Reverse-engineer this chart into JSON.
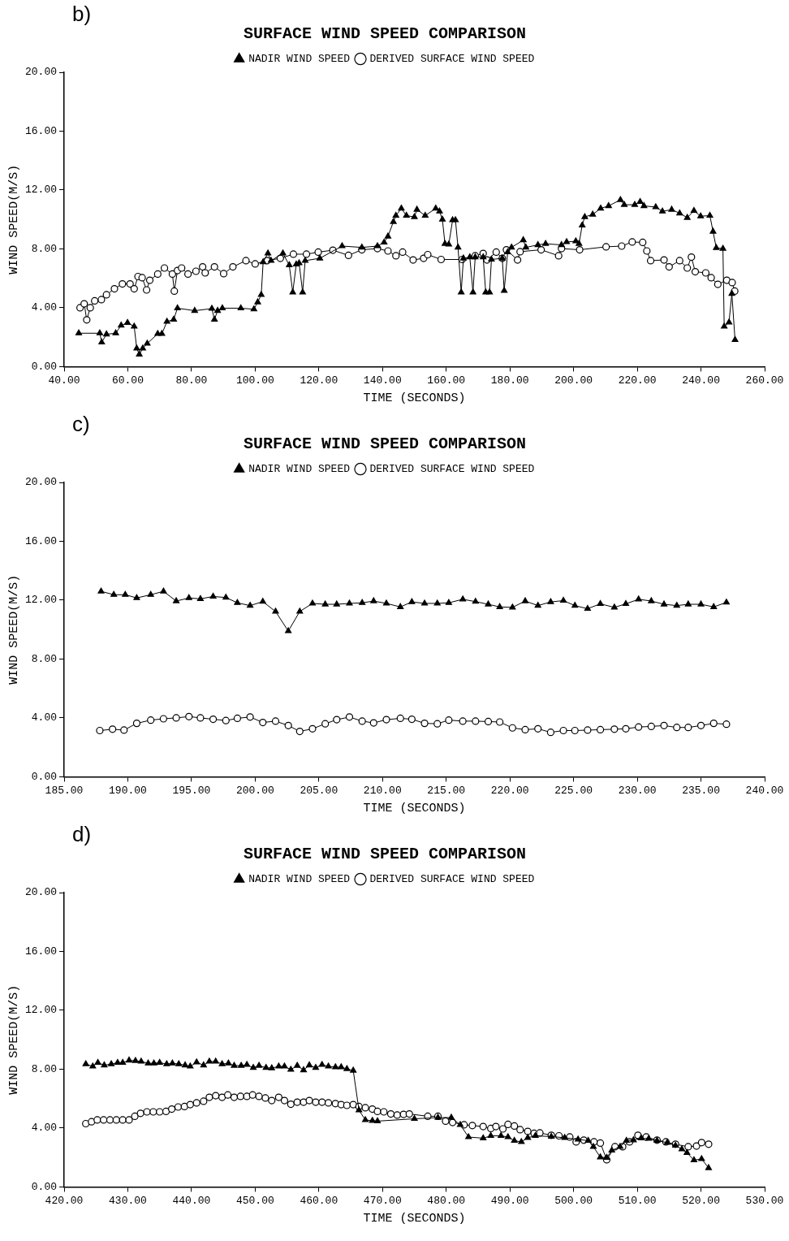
{
  "chart_data": [
    {
      "type": "line",
      "title": "SURFACE WIND SPEED COMPARISON",
      "annotations": [
        "b)"
      ],
      "xlabel": "TIME (SECONDS)",
      "ylabel": "WIND SPEED(M/S)",
      "legend": "top",
      "xlim": [
        40,
        260
      ],
      "xticks": [
        {
          "value": 40,
          "label": "40.00"
        },
        {
          "value": 60,
          "label": "60.00"
        },
        {
          "value": 80,
          "label": "80.00"
        },
        {
          "value": 100,
          "label": "100.00"
        },
        {
          "value": 120,
          "label": "120.00"
        },
        {
          "value": 140,
          "label": "140.00"
        },
        {
          "value": 160,
          "label": "160.00"
        },
        {
          "value": 180,
          "label": "180.00"
        },
        {
          "value": 200,
          "label": "200.00"
        },
        {
          "value": 220,
          "label": "220.00"
        },
        {
          "value": 240,
          "label": "240.00"
        },
        {
          "value": 260,
          "label": "260.00"
        }
      ],
      "ylim": [
        0,
        20
      ],
      "yticks": [
        {
          "value": 0,
          "label": "0.00"
        },
        {
          "value": 4,
          "label": "4.00"
        },
        {
          "value": 8,
          "label": "8.00"
        },
        {
          "value": 12,
          "label": "12.00"
        },
        {
          "value": 16,
          "label": "16.00"
        },
        {
          "value": 20,
          "label": "20.00"
        }
      ],
      "series": [
        {
          "name": "NADIR WIND SPEED",
          "color": "#000000",
          "marker": "triangle",
          "x": [
            44.6,
            51.2,
            51.8,
            53.3,
            56.2,
            57.9,
            59.9,
            62.0,
            62.8,
            63.6,
            64.7,
            66.1,
            69.4,
            70.7,
            72.3,
            74.4,
            75.6,
            81.0,
            86.4,
            87.2,
            88.2,
            89.7,
            95.5,
            99.6,
            100.8,
            101.9,
            102.5,
            104.0,
            105.0,
            108.7,
            110.7,
            111.8,
            112.9,
            113.8,
            114.9,
            115.7,
            120.3,
            127.3,
            133.5,
            138.4,
            140.5,
            141.7,
            143.4,
            144.2,
            145.9,
            147.5,
            150.0,
            150.8,
            153.4,
            156.7,
            157.9,
            158.8,
            159.6,
            160.8,
            162.0,
            162.9,
            163.7,
            164.7,
            165.4,
            167.4,
            168.4,
            169.1,
            171.6,
            172.4,
            173.6,
            174.2,
            177.6,
            178.2,
            179.3,
            180.5,
            184.2,
            185.0,
            188.8,
            191.2,
            196.2,
            197.8,
            200.7,
            201.7,
            202.7,
            203.5,
            206.0,
            208.5,
            211.0,
            214.7,
            215.9,
            219.2,
            220.9,
            222.1,
            225.8,
            227.9,
            230.8,
            233.3,
            235.7,
            237.8,
            239.9,
            242.8,
            243.8,
            244.8,
            246.9,
            247.3,
            248.8,
            249.7,
            250.7
          ],
          "values": [
            2.27,
            2.27,
            1.65,
            2.2,
            2.27,
            2.8,
            2.98,
            2.73,
            1.24,
            0.83,
            1.24,
            1.57,
            2.23,
            2.23,
            3.06,
            3.2,
            3.97,
            3.8,
            3.94,
            3.2,
            3.8,
            3.97,
            3.97,
            3.9,
            4.38,
            4.88,
            7.1,
            7.7,
            7.2,
            7.7,
            6.9,
            5.05,
            6.95,
            7.03,
            5.05,
            7.2,
            7.36,
            8.19,
            8.1,
            8.19,
            8.44,
            8.85,
            9.84,
            10.26,
            10.75,
            10.26,
            10.17,
            10.67,
            10.26,
            10.75,
            10.55,
            10.0,
            8.35,
            8.3,
            9.96,
            9.96,
            8.1,
            5.05,
            7.36,
            7.44,
            5.05,
            7.44,
            7.44,
            5.05,
            5.05,
            7.28,
            7.36,
            5.16,
            7.78,
            8.1,
            8.6,
            8.1,
            8.27,
            8.35,
            8.27,
            8.47,
            8.52,
            8.35,
            9.6,
            10.17,
            10.34,
            10.75,
            10.92,
            11.33,
            11.0,
            11.0,
            11.2,
            10.92,
            10.84,
            10.55,
            10.67,
            10.42,
            10.12,
            10.59,
            10.22,
            10.26,
            9.18,
            8.07,
            8.02,
            2.73,
            3.01,
            4.96,
            1.82
          ]
        },
        {
          "name": "DERIVED SURFACE WIND SPEED",
          "color": "#000000",
          "marker": "circle",
          "x": [
            45.0,
            46.3,
            47.1,
            48.2,
            49.6,
            51.7,
            53.3,
            55.8,
            58.3,
            60.7,
            62.0,
            63.2,
            64.5,
            65.9,
            66.9,
            69.4,
            71.5,
            74.0,
            74.6,
            75.6,
            76.9,
            78.9,
            81.4,
            83.5,
            84.3,
            87.2,
            90.1,
            93.0,
            97.1,
            100.0,
            103.7,
            107.9,
            112.0,
            116.1,
            119.8,
            124.4,
            129.3,
            133.5,
            138.4,
            141.7,
            144.2,
            146.3,
            149.6,
            152.9,
            154.2,
            158.4,
            165.0,
            169.1,
            171.6,
            172.8,
            175.7,
            177.6,
            178.9,
            182.4,
            183.2,
            189.8,
            195.3,
            196.2,
            201.9,
            210.2,
            215.1,
            218.4,
            221.7,
            223.0,
            224.2,
            228.4,
            230.0,
            233.3,
            235.7,
            237.0,
            238.2,
            241.5,
            243.2,
            245.3,
            248.1,
            249.8,
            250.6
          ],
          "values": [
            4.0,
            4.27,
            3.18,
            4.0,
            4.47,
            4.55,
            4.88,
            5.29,
            5.62,
            5.62,
            5.29,
            6.12,
            6.04,
            5.21,
            5.87,
            6.29,
            6.7,
            6.29,
            5.13,
            6.53,
            6.7,
            6.29,
            6.48,
            6.78,
            6.37,
            6.78,
            6.32,
            6.78,
            7.2,
            6.98,
            7.2,
            7.36,
            7.64,
            7.64,
            7.78,
            7.91,
            7.56,
            7.94,
            8.02,
            7.86,
            7.53,
            7.78,
            7.25,
            7.36,
            7.61,
            7.28,
            7.28,
            7.53,
            7.69,
            7.25,
            7.78,
            7.36,
            7.94,
            7.25,
            7.81,
            7.94,
            7.53,
            8.02,
            7.94,
            8.14,
            8.19,
            8.47,
            8.44,
            7.86,
            7.2,
            7.25,
            6.78,
            7.2,
            6.7,
            7.44,
            6.45,
            6.37,
            6.04,
            5.59,
            5.87,
            5.71,
            5.13
          ]
        }
      ]
    },
    {
      "type": "line",
      "title": "SURFACE WIND SPEED COMPARISON",
      "annotations": [
        "c)"
      ],
      "xlabel": "TIME (SECONDS)",
      "ylabel": "WIND SPEED(M/S)",
      "legend": "top",
      "xlim": [
        185,
        240
      ],
      "xticks": [
        {
          "value": 185,
          "label": "185.00"
        },
        {
          "value": 190,
          "label": "190.00"
        },
        {
          "value": 195,
          "label": "195.00"
        },
        {
          "value": 200,
          "label": "200.00"
        },
        {
          "value": 205,
          "label": "205.00"
        },
        {
          "value": 210,
          "label": "210.00"
        },
        {
          "value": 215,
          "label": "215.00"
        },
        {
          "value": 220,
          "label": "220.00"
        },
        {
          "value": 225,
          "label": "225.00"
        },
        {
          "value": 230,
          "label": "230.00"
        },
        {
          "value": 235,
          "label": "235.00"
        },
        {
          "value": 240,
          "label": "240.00"
        }
      ],
      "ylim": [
        0,
        20
      ],
      "yticks": [
        {
          "value": 0,
          "label": "0.00"
        },
        {
          "value": 4,
          "label": "4.00"
        },
        {
          "value": 8,
          "label": "8.00"
        },
        {
          "value": 12,
          "label": "12.00"
        },
        {
          "value": 16,
          "label": "16.00"
        },
        {
          "value": 20,
          "label": "20.00"
        }
      ],
      "series": [
        {
          "name": "NADIR WIND SPEED",
          "color": "#000000",
          "marker": "triangle",
          "x": [
            187.9,
            188.9,
            189.8,
            190.7,
            191.8,
            192.8,
            193.8,
            194.8,
            195.7,
            196.7,
            197.7,
            198.6,
            199.6,
            200.6,
            201.6,
            202.6,
            203.5,
            204.5,
            205.5,
            206.4,
            207.4,
            208.4,
            209.3,
            210.3,
            211.4,
            212.3,
            213.3,
            214.3,
            215.2,
            216.3,
            217.3,
            218.3,
            219.2,
            220.2,
            221.2,
            222.2,
            223.2,
            224.2,
            225.1,
            226.1,
            227.1,
            228.2,
            229.1,
            230.1,
            231.1,
            232.1,
            233.1,
            234.0,
            235.0,
            236.0,
            237.0
          ],
          "values": [
            12.6,
            12.37,
            12.37,
            12.15,
            12.37,
            12.6,
            11.94,
            12.15,
            12.09,
            12.25,
            12.18,
            11.82,
            11.63,
            11.9,
            11.23,
            9.9,
            11.23,
            11.78,
            11.72,
            11.72,
            11.78,
            11.82,
            11.94,
            11.78,
            11.54,
            11.88,
            11.78,
            11.78,
            11.82,
            12.06,
            11.9,
            11.72,
            11.54,
            11.51,
            11.94,
            11.63,
            11.88,
            11.97,
            11.63,
            11.42,
            11.75,
            11.51,
            11.75,
            12.06,
            11.94,
            11.72,
            11.63,
            11.72,
            11.72,
            11.54,
            11.85
          ]
        },
        {
          "name": "DERIVED SURFACE WIND SPEED",
          "color": "#000000",
          "marker": "circle",
          "x": [
            187.8,
            188.8,
            189.7,
            190.7,
            191.8,
            192.8,
            193.8,
            194.8,
            195.7,
            196.7,
            197.7,
            198.6,
            199.6,
            200.6,
            201.6,
            202.6,
            203.5,
            204.5,
            205.5,
            206.4,
            207.4,
            208.4,
            209.3,
            210.3,
            211.4,
            212.3,
            213.3,
            214.3,
            215.2,
            216.3,
            217.3,
            218.3,
            219.2,
            220.2,
            221.2,
            222.2,
            223.2,
            224.2,
            225.1,
            226.1,
            227.1,
            228.2,
            229.1,
            230.1,
            231.1,
            232.1,
            233.1,
            234.0,
            235.0,
            236.0,
            237.0
          ],
          "values": [
            3.14,
            3.23,
            3.17,
            3.63,
            3.85,
            3.94,
            4.0,
            4.09,
            4.0,
            3.91,
            3.82,
            3.97,
            4.06,
            3.69,
            3.78,
            3.48,
            3.08,
            3.26,
            3.6,
            3.88,
            4.06,
            3.78,
            3.66,
            3.88,
            3.97,
            3.91,
            3.63,
            3.6,
            3.85,
            3.78,
            3.78,
            3.75,
            3.72,
            3.32,
            3.2,
            3.26,
            3.02,
            3.14,
            3.14,
            3.17,
            3.2,
            3.23,
            3.26,
            3.38,
            3.42,
            3.48,
            3.35,
            3.35,
            3.48,
            3.63,
            3.57
          ]
        }
      ]
    },
    {
      "type": "line",
      "title": "SURFACE WIND SPEED COMPARISON",
      "annotations": [
        "d)"
      ],
      "xlabel": "TIME (SECONDS)",
      "ylabel": "WIND SPEED(M/S)",
      "legend": "top",
      "xlim": [
        420,
        530
      ],
      "xticks": [
        {
          "value": 420,
          "label": "420.00"
        },
        {
          "value": 430,
          "label": "430.00"
        },
        {
          "value": 440,
          "label": "440.00"
        },
        {
          "value": 450,
          "label": "450.00"
        },
        {
          "value": 460,
          "label": "460.00"
        },
        {
          "value": 470,
          "label": "470.00"
        },
        {
          "value": 480,
          "label": "480.00"
        },
        {
          "value": 490,
          "label": "490.00"
        },
        {
          "value": 500,
          "label": "500.00"
        },
        {
          "value": 510,
          "label": "510.00"
        },
        {
          "value": 520,
          "label": "520.00"
        },
        {
          "value": 530,
          "label": "530.00"
        }
      ],
      "ylim": [
        0,
        20
      ],
      "yticks": [
        {
          "value": 0,
          "label": "0.00"
        },
        {
          "value": 4,
          "label": "4.00"
        },
        {
          "value": 8,
          "label": "8.00"
        },
        {
          "value": 12,
          "label": "12.00"
        },
        {
          "value": 16,
          "label": "16.00"
        },
        {
          "value": 20,
          "label": "20.00"
        }
      ],
      "series": [
        {
          "name": "NADIR WIND SPEED",
          "color": "#000000",
          "marker": "triangle",
          "x": [
            423.4,
            424.5,
            425.3,
            426.3,
            427.4,
            428.4,
            429.2,
            430.2,
            431.2,
            432.1,
            433.2,
            434.1,
            435.0,
            436.1,
            437.0,
            438.0,
            439.0,
            439.8,
            440.8,
            441.9,
            442.8,
            443.8,
            444.8,
            445.8,
            446.7,
            447.8,
            448.7,
            449.7,
            450.6,
            451.7,
            452.6,
            453.7,
            454.6,
            455.6,
            456.6,
            457.6,
            458.5,
            459.5,
            460.5,
            461.5,
            462.6,
            463.5,
            464.4,
            465.4,
            466.3,
            467.3,
            468.4,
            469.2,
            475.0,
            478.7,
            480.8,
            482.2,
            483.5,
            485.8,
            487.0,
            488.6,
            489.7,
            490.7,
            491.8,
            492.8,
            494.0,
            496.5,
            498.6,
            500.7,
            502.3,
            503.1,
            504.2,
            505.2,
            506.0,
            507.3,
            508.3,
            509.4,
            510.6,
            511.8,
            513.1,
            514.7,
            516.0,
            517.0,
            517.8,
            518.9,
            520.1,
            521.2
          ],
          "values": [
            8.35,
            8.19,
            8.44,
            8.27,
            8.35,
            8.44,
            8.44,
            8.6,
            8.57,
            8.52,
            8.4,
            8.4,
            8.44,
            8.35,
            8.4,
            8.35,
            8.27,
            8.19,
            8.47,
            8.27,
            8.52,
            8.52,
            8.35,
            8.4,
            8.24,
            8.24,
            8.3,
            8.1,
            8.24,
            8.1,
            8.07,
            8.19,
            8.19,
            7.97,
            8.24,
            7.94,
            8.27,
            8.1,
            8.3,
            8.19,
            8.14,
            8.14,
            8.02,
            7.91,
            5.21,
            4.55,
            4.5,
            4.47,
            4.63,
            4.71,
            4.71,
            4.22,
            3.39,
            3.31,
            3.47,
            3.47,
            3.39,
            3.14,
            3.06,
            3.34,
            3.47,
            3.42,
            3.34,
            3.23,
            3.14,
            2.73,
            2.02,
            1.99,
            2.48,
            2.73,
            3.14,
            3.18,
            3.31,
            3.28,
            3.14,
            3.01,
            2.81,
            2.56,
            2.32,
            1.82,
            1.9,
            1.29
          ]
        },
        {
          "name": "DERIVED SURFACE WIND SPEED",
          "color": "#000000",
          "marker": "circle",
          "x": [
            423.4,
            424.3,
            425.2,
            426.2,
            427.2,
            428.2,
            429.2,
            430.2,
            431.1,
            432.0,
            433.0,
            434.0,
            435.0,
            436.0,
            436.9,
            437.9,
            438.9,
            439.8,
            440.8,
            441.9,
            442.8,
            443.8,
            444.8,
            445.7,
            446.7,
            447.7,
            448.7,
            449.6,
            450.6,
            451.6,
            452.6,
            453.7,
            454.6,
            455.6,
            456.6,
            457.6,
            458.5,
            459.5,
            460.5,
            461.5,
            462.6,
            463.5,
            464.4,
            465.4,
            466.3,
            467.3,
            468.4,
            469.2,
            470.2,
            471.3,
            472.3,
            473.3,
            474.2,
            477.1,
            478.7,
            479.9,
            481.0,
            482.8,
            484.1,
            485.8,
            487.0,
            487.8,
            488.9,
            489.7,
            490.7,
            491.6,
            492.8,
            493.8,
            494.7,
            496.5,
            497.7,
            499.4,
            500.4,
            501.6,
            503.2,
            504.2,
            505.2,
            506.5,
            507.7,
            508.8,
            510.1,
            511.4,
            513.1,
            514.5,
            516.0,
            518.0,
            519.3,
            520.1,
            521.2
          ],
          "values": [
            4.3,
            4.43,
            4.55,
            4.55,
            4.55,
            4.55,
            4.55,
            4.55,
            4.8,
            5.0,
            5.1,
            5.1,
            5.1,
            5.13,
            5.29,
            5.43,
            5.46,
            5.59,
            5.71,
            5.82,
            6.09,
            6.2,
            6.09,
            6.25,
            6.09,
            6.15,
            6.15,
            6.25,
            6.15,
            6.04,
            5.87,
            6.09,
            5.87,
            5.62,
            5.76,
            5.76,
            5.87,
            5.76,
            5.76,
            5.71,
            5.66,
            5.59,
            5.54,
            5.59,
            5.46,
            5.38,
            5.29,
            5.13,
            5.1,
            4.96,
            4.88,
            4.93,
            4.96,
            4.8,
            4.8,
            4.47,
            4.38,
            4.22,
            4.17,
            4.1,
            3.97,
            4.1,
            3.94,
            4.25,
            4.14,
            3.89,
            3.77,
            3.64,
            3.67,
            3.51,
            3.47,
            3.39,
            3.06,
            3.18,
            3.06,
            2.98,
            1.85,
            2.73,
            2.73,
            3.06,
            3.51,
            3.39,
            3.18,
            3.06,
            2.9,
            2.73,
            2.78,
            3.01,
            2.9
          ]
        }
      ]
    }
  ]
}
